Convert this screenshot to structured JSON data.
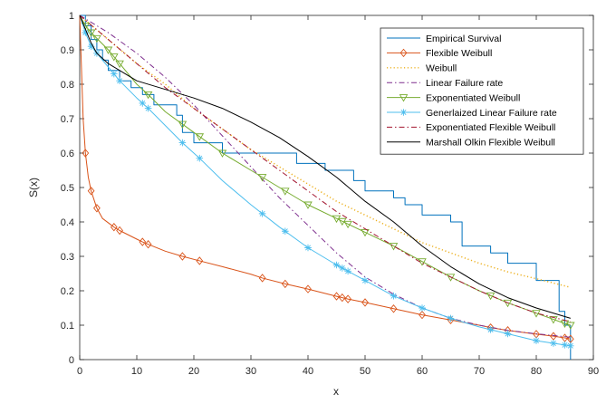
{
  "chart_data": {
    "type": "line",
    "title": "",
    "xlabel": "x",
    "ylabel": "S(x)",
    "xlim": [
      0,
      90
    ],
    "ylim": [
      0,
      1
    ],
    "x_ticks": [
      "0",
      "10",
      "20",
      "30",
      "40",
      "50",
      "60",
      "70",
      "80",
      "90"
    ],
    "y_ticks": [
      "0",
      "0.1",
      "0.2",
      "0.3",
      "0.4",
      "0.5",
      "0.6",
      "0.7",
      "0.8",
      "0.9",
      "1"
    ],
    "grid": false,
    "legend_position": "top-right",
    "series": [
      {
        "name": "Empirical Survival",
        "color": "#0072BD",
        "style": "step",
        "marker": "none",
        "points": [
          [
            0,
            1
          ],
          [
            1,
            1
          ],
          [
            1,
            0.97
          ],
          [
            2,
            0.97
          ],
          [
            2,
            0.93
          ],
          [
            3,
            0.93
          ],
          [
            3,
            0.9
          ],
          [
            4,
            0.9
          ],
          [
            4,
            0.87
          ],
          [
            5,
            0.87
          ],
          [
            5,
            0.84
          ],
          [
            7,
            0.84
          ],
          [
            7,
            0.81
          ],
          [
            9,
            0.81
          ],
          [
            9,
            0.79
          ],
          [
            11,
            0.79
          ],
          [
            11,
            0.77
          ],
          [
            13,
            0.77
          ],
          [
            13,
            0.74
          ],
          [
            17,
            0.74
          ],
          [
            17,
            0.71
          ],
          [
            18,
            0.71
          ],
          [
            18,
            0.66
          ],
          [
            20,
            0.66
          ],
          [
            20,
            0.63
          ],
          [
            25,
            0.63
          ],
          [
            25,
            0.6
          ],
          [
            38,
            0.6
          ],
          [
            38,
            0.57
          ],
          [
            43,
            0.57
          ],
          [
            43,
            0.55
          ],
          [
            48,
            0.55
          ],
          [
            48,
            0.52
          ],
          [
            50,
            0.52
          ],
          [
            50,
            0.49
          ],
          [
            55,
            0.49
          ],
          [
            55,
            0.47
          ],
          [
            57,
            0.47
          ],
          [
            57,
            0.45
          ],
          [
            60,
            0.45
          ],
          [
            60,
            0.42
          ],
          [
            65,
            0.42
          ],
          [
            65,
            0.4
          ],
          [
            67,
            0.4
          ],
          [
            67,
            0.33
          ],
          [
            72,
            0.33
          ],
          [
            72,
            0.31
          ],
          [
            75,
            0.31
          ],
          [
            75,
            0.28
          ],
          [
            80,
            0.28
          ],
          [
            80,
            0.23
          ],
          [
            84,
            0.23
          ],
          [
            84,
            0.14
          ],
          [
            85,
            0.14
          ],
          [
            85,
            0.1
          ],
          [
            86,
            0.1
          ],
          [
            86,
            0
          ]
        ]
      },
      {
        "name": "Flexible Weibull",
        "color": "#D95319",
        "style": "solid",
        "marker": "diamond",
        "points": [
          [
            0,
            1
          ],
          [
            0.3,
            0.85
          ],
          [
            0.6,
            0.7
          ],
          [
            1,
            0.6
          ],
          [
            1.5,
            0.53
          ],
          [
            2,
            0.49
          ],
          [
            3,
            0.44
          ],
          [
            4,
            0.41
          ],
          [
            6,
            0.385
          ],
          [
            7,
            0.375
          ],
          [
            10,
            0.35
          ],
          [
            11,
            0.342
          ],
          [
            12,
            0.335
          ],
          [
            15,
            0.315
          ],
          [
            18,
            0.3
          ],
          [
            21,
            0.287
          ],
          [
            25,
            0.27
          ],
          [
            30,
            0.248
          ],
          [
            32,
            0.237
          ],
          [
            36,
            0.22
          ],
          [
            40,
            0.205
          ],
          [
            45,
            0.184
          ],
          [
            46,
            0.18
          ],
          [
            47,
            0.176
          ],
          [
            50,
            0.166
          ],
          [
            55,
            0.148
          ],
          [
            60,
            0.13
          ],
          [
            65,
            0.115
          ],
          [
            70,
            0.1
          ],
          [
            72,
            0.093
          ],
          [
            75,
            0.085
          ],
          [
            80,
            0.074
          ],
          [
            83,
            0.068
          ],
          [
            85,
            0.063
          ],
          [
            86,
            0.06
          ]
        ],
        "marker_x": [
          1,
          2,
          3,
          6,
          7,
          11,
          12,
          18,
          21,
          32,
          36,
          40,
          45,
          46,
          47,
          50,
          55,
          60,
          65,
          72,
          75,
          80,
          83,
          85,
          86
        ]
      },
      {
        "name": "Weibull",
        "color": "#EDB120",
        "style": "dotted",
        "marker": "none",
        "points": [
          [
            0,
            1
          ],
          [
            5,
            0.93
          ],
          [
            10,
            0.86
          ],
          [
            15,
            0.8
          ],
          [
            20,
            0.73
          ],
          [
            25,
            0.67
          ],
          [
            30,
            0.61
          ],
          [
            35,
            0.56
          ],
          [
            40,
            0.51
          ],
          [
            45,
            0.46
          ],
          [
            50,
            0.42
          ],
          [
            55,
            0.38
          ],
          [
            60,
            0.34
          ],
          [
            65,
            0.31
          ],
          [
            70,
            0.28
          ],
          [
            75,
            0.255
          ],
          [
            80,
            0.235
          ],
          [
            86,
            0.21
          ]
        ]
      },
      {
        "name": "Linear Failure rate",
        "color": "#7E2F8E",
        "style": "dashdot",
        "marker": "none",
        "points": [
          [
            0,
            1
          ],
          [
            5,
            0.95
          ],
          [
            10,
            0.89
          ],
          [
            15,
            0.82
          ],
          [
            20,
            0.74
          ],
          [
            25,
            0.65
          ],
          [
            30,
            0.56
          ],
          [
            35,
            0.47
          ],
          [
            40,
            0.39
          ],
          [
            45,
            0.31
          ],
          [
            50,
            0.24
          ],
          [
            55,
            0.19
          ],
          [
            60,
            0.15
          ],
          [
            65,
            0.12
          ],
          [
            70,
            0.1
          ],
          [
            75,
            0.085
          ],
          [
            80,
            0.075
          ],
          [
            86,
            0.065
          ]
        ]
      },
      {
        "name": "Exponentiated Weibull",
        "color": "#77AC30",
        "style": "solid",
        "marker": "triangle-down",
        "points": [
          [
            0,
            1
          ],
          [
            1,
            0.97
          ],
          [
            2,
            0.95
          ],
          [
            5,
            0.9
          ],
          [
            7,
            0.86
          ],
          [
            10,
            0.8
          ],
          [
            12,
            0.77
          ],
          [
            15,
            0.72
          ],
          [
            20,
            0.66
          ],
          [
            25,
            0.6
          ],
          [
            30,
            0.55
          ],
          [
            35,
            0.5
          ],
          [
            40,
            0.45
          ],
          [
            45,
            0.41
          ],
          [
            50,
            0.37
          ],
          [
            55,
            0.33
          ],
          [
            60,
            0.285
          ],
          [
            65,
            0.24
          ],
          [
            70,
            0.2
          ],
          [
            75,
            0.165
          ],
          [
            80,
            0.135
          ],
          [
            85,
            0.105
          ],
          [
            86,
            0.1
          ]
        ],
        "marker_x": [
          1,
          2,
          3,
          5,
          6,
          7,
          12,
          18,
          21,
          25,
          32,
          36,
          40,
          45,
          46,
          47,
          50,
          55,
          60,
          65,
          72,
          75,
          80,
          83,
          85,
          86
        ]
      },
      {
        "name": "Generlaized Linear Failure rate",
        "color": "#4DBEEE",
        "style": "solid",
        "marker": "asterisk",
        "points": [
          [
            0,
            1
          ],
          [
            1,
            0.95
          ],
          [
            2,
            0.91
          ],
          [
            3,
            0.89
          ],
          [
            5,
            0.85
          ],
          [
            7,
            0.81
          ],
          [
            10,
            0.76
          ],
          [
            12,
            0.73
          ],
          [
            15,
            0.68
          ],
          [
            18,
            0.63
          ],
          [
            21,
            0.585
          ],
          [
            25,
            0.52
          ],
          [
            30,
            0.45
          ],
          [
            35,
            0.385
          ],
          [
            40,
            0.325
          ],
          [
            45,
            0.275
          ],
          [
            50,
            0.23
          ],
          [
            55,
            0.185
          ],
          [
            60,
            0.15
          ],
          [
            65,
            0.12
          ],
          [
            70,
            0.095
          ],
          [
            75,
            0.075
          ],
          [
            80,
            0.055
          ],
          [
            86,
            0.04
          ]
        ],
        "marker_x": [
          1,
          2,
          3,
          6,
          7,
          11,
          12,
          18,
          21,
          32,
          36,
          40,
          45,
          46,
          47,
          50,
          55,
          60,
          65,
          72,
          75,
          80,
          83,
          85,
          86
        ]
      },
      {
        "name": "Exponentiated Flexible Weibull",
        "color": "#A2142F",
        "style": "dashdot",
        "marker": "none",
        "points": [
          [
            0,
            1
          ],
          [
            5,
            0.93
          ],
          [
            10,
            0.86
          ],
          [
            15,
            0.79
          ],
          [
            20,
            0.73
          ],
          [
            25,
            0.67
          ],
          [
            30,
            0.61
          ],
          [
            35,
            0.55
          ],
          [
            40,
            0.49
          ],
          [
            45,
            0.43
          ],
          [
            50,
            0.38
          ],
          [
            55,
            0.33
          ],
          [
            60,
            0.28
          ],
          [
            65,
            0.24
          ],
          [
            70,
            0.2
          ],
          [
            75,
            0.165
          ],
          [
            80,
            0.135
          ],
          [
            86,
            0.11
          ]
        ]
      },
      {
        "name": "Marshall Olkin Flexible Weibull",
        "color": "#000000",
        "style": "solid",
        "marker": "none",
        "points": [
          [
            0,
            1
          ],
          [
            1,
            0.96
          ],
          [
            2,
            0.92
          ],
          [
            3,
            0.89
          ],
          [
            5,
            0.86
          ],
          [
            8,
            0.83
          ],
          [
            10,
            0.81
          ],
          [
            15,
            0.785
          ],
          [
            20,
            0.76
          ],
          [
            25,
            0.73
          ],
          [
            30,
            0.69
          ],
          [
            35,
            0.645
          ],
          [
            40,
            0.59
          ],
          [
            45,
            0.53
          ],
          [
            50,
            0.46
          ],
          [
            55,
            0.4
          ],
          [
            60,
            0.33
          ],
          [
            65,
            0.27
          ],
          [
            70,
            0.22
          ],
          [
            75,
            0.18
          ],
          [
            80,
            0.15
          ],
          [
            86,
            0.12
          ]
        ]
      }
    ]
  }
}
